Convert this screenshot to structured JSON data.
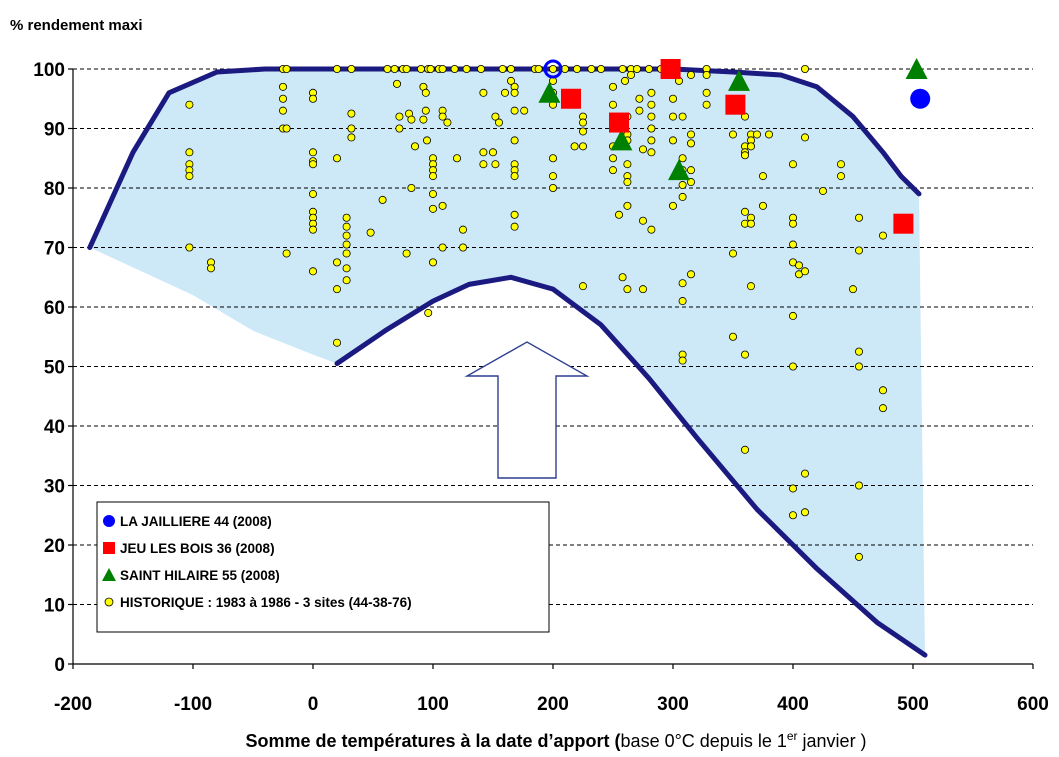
{
  "chart_data": {
    "type": "scatter",
    "title": "",
    "ylabel": "% rendement maxi",
    "xlabel": {
      "bold": "Somme de températures à la date d’apport (",
      "normal": "base 0°C depuis le 1",
      "sup": "er",
      "end": " janvier )"
    },
    "xlim": [
      -200,
      600
    ],
    "ylim": [
      0,
      100
    ],
    "x_ticks": [
      -200,
      -100,
      0,
      100,
      200,
      300,
      400,
      500,
      600
    ],
    "x_tick_labels": [
      "-200",
      "-100",
      "0",
      "100",
      "200",
      "300",
      "400",
      "500",
      "600"
    ],
    "y_ticks": [
      0,
      10,
      20,
      30,
      40,
      50,
      60,
      70,
      80,
      90,
      100
    ],
    "y_tick_labels": [
      "0",
      "10",
      "20",
      "30",
      "40",
      "50",
      "60",
      "70",
      "80",
      "90",
      "100"
    ],
    "grid": "horizontal dashed",
    "legend_position": "bottom-left",
    "envelope": {
      "color": "#cde9f8",
      "line_color": "#1a1a80",
      "upper": [
        [
          -186,
          70
        ],
        [
          -150,
          86
        ],
        [
          -120,
          96
        ],
        [
          -80,
          99.5
        ],
        [
          -40,
          100
        ],
        [
          0,
          100
        ],
        [
          300,
          100
        ],
        [
          350,
          99.5
        ],
        [
          390,
          99
        ],
        [
          420,
          97
        ],
        [
          450,
          92
        ],
        [
          475,
          86
        ],
        [
          490,
          82
        ],
        [
          505,
          79
        ]
      ],
      "lower": [
        [
          20,
          50.5
        ],
        [
          60,
          56
        ],
        [
          100,
          61
        ],
        [
          130,
          63.8
        ],
        [
          165,
          65
        ],
        [
          200,
          63
        ],
        [
          240,
          57
        ],
        [
          280,
          48
        ],
        [
          320,
          38
        ],
        [
          370,
          26
        ],
        [
          420,
          16
        ],
        [
          470,
          7
        ],
        [
          510,
          1.5
        ]
      ],
      "lower_left": [
        [
          -186,
          70
        ],
        [
          -100,
          62
        ],
        [
          -50,
          56
        ],
        [
          0,
          52
        ],
        [
          20,
          50.5
        ]
      ]
    },
    "series": [
      {
        "name": "LA JAILLIERE 44 (2008)",
        "marker": "circle",
        "color": "#0000ff",
        "points": [
          [
            200,
            100
          ],
          [
            506,
            95
          ]
        ]
      },
      {
        "name": "JEU LES BOIS 36 (2008)",
        "marker": "square",
        "color": "#ff0000",
        "points": [
          [
            215,
            95
          ],
          [
            255,
            91
          ],
          [
            298,
            100
          ],
          [
            352,
            94
          ],
          [
            492,
            74
          ]
        ]
      },
      {
        "name": "SAINT HILAIRE 55 (2008)",
        "marker": "triangle",
        "color": "#008000",
        "points": [
          [
            197,
            96
          ],
          [
            257,
            88
          ],
          [
            305,
            83
          ],
          [
            355,
            98
          ],
          [
            503,
            100
          ]
        ]
      },
      {
        "name": "HISTORIQUE : 1983 à 1986 - 3 sites (44-38-76)",
        "marker": "circle-small",
        "color": "#ffff00",
        "points": [
          [
            -103,
            94
          ],
          [
            -103,
            86
          ],
          [
            -103,
            84
          ],
          [
            -103,
            83
          ],
          [
            -103,
            82
          ],
          [
            -103,
            70
          ],
          [
            -85,
            67.5
          ],
          [
            -85,
            66.5
          ],
          [
            -25,
            100
          ],
          [
            -22,
            100
          ],
          [
            -25,
            97
          ],
          [
            -25,
            95
          ],
          [
            -25,
            93
          ],
          [
            -25,
            90
          ],
          [
            -22,
            90
          ],
          [
            -22,
            69
          ],
          [
            0,
            96
          ],
          [
            0,
            95
          ],
          [
            0,
            86
          ],
          [
            0,
            84.5
          ],
          [
            0,
            84
          ],
          [
            0,
            79
          ],
          [
            0,
            76
          ],
          [
            0,
            75
          ],
          [
            0,
            74
          ],
          [
            0,
            73
          ],
          [
            0,
            66
          ],
          [
            20,
            100
          ],
          [
            20,
            85
          ],
          [
            20,
            67.5
          ],
          [
            20,
            63
          ],
          [
            20,
            54
          ],
          [
            28,
            75
          ],
          [
            28,
            73.5
          ],
          [
            28,
            72
          ],
          [
            28,
            70.5
          ],
          [
            28,
            69
          ],
          [
            28,
            66.5
          ],
          [
            28,
            64.5
          ],
          [
            32,
            100
          ],
          [
            32,
            92.5
          ],
          [
            32,
            90
          ],
          [
            32,
            88.5
          ],
          [
            48,
            72.5
          ],
          [
            58,
            78
          ],
          [
            62,
            100
          ],
          [
            68,
            100
          ],
          [
            70,
            97.5
          ],
          [
            72,
            92
          ],
          [
            72,
            90
          ],
          [
            75,
            100
          ],
          [
            78,
            100
          ],
          [
            78,
            69
          ],
          [
            80,
            92.5
          ],
          [
            82,
            91.5
          ],
          [
            82,
            80
          ],
          [
            85,
            87
          ],
          [
            90,
            100
          ],
          [
            92,
            97
          ],
          [
            94,
            96
          ],
          [
            94,
            93
          ],
          [
            92,
            91.5
          ],
          [
            95,
            88
          ],
          [
            96,
            100
          ],
          [
            96,
            59
          ],
          [
            98,
            100
          ],
          [
            100,
            85
          ],
          [
            100,
            84
          ],
          [
            100,
            83
          ],
          [
            100,
            82
          ],
          [
            100,
            79
          ],
          [
            100,
            76.5
          ],
          [
            100,
            67.5
          ],
          [
            105,
            100
          ],
          [
            108,
            100
          ],
          [
            108,
            93
          ],
          [
            108,
            92
          ],
          [
            108,
            77
          ],
          [
            108,
            70
          ],
          [
            112,
            91
          ],
          [
            118,
            100
          ],
          [
            120,
            85
          ],
          [
            125,
            73
          ],
          [
            125,
            70
          ],
          [
            128,
            100
          ],
          [
            140,
            100
          ],
          [
            142,
            96
          ],
          [
            142,
            86
          ],
          [
            142,
            84
          ],
          [
            150,
            86
          ],
          [
            152,
            84
          ],
          [
            152,
            92
          ],
          [
            155,
            91
          ],
          [
            158,
            100
          ],
          [
            160,
            96
          ],
          [
            165,
            100
          ],
          [
            165,
            98
          ],
          [
            168,
            97
          ],
          [
            168,
            96
          ],
          [
            168,
            93
          ],
          [
            168,
            88
          ],
          [
            168,
            84
          ],
          [
            168,
            83
          ],
          [
            168,
            82
          ],
          [
            168,
            75.5
          ],
          [
            168,
            73.5
          ],
          [
            176,
            93
          ],
          [
            185,
            100
          ],
          [
            188,
            100
          ],
          [
            200,
            100
          ],
          [
            200,
            98
          ],
          [
            200,
            96
          ],
          [
            200,
            95
          ],
          [
            200,
            94
          ],
          [
            200,
            85
          ],
          [
            200,
            82
          ],
          [
            200,
            80
          ],
          [
            210,
            100
          ],
          [
            215,
            95
          ],
          [
            218,
            95
          ],
          [
            218,
            87
          ],
          [
            220,
            100
          ],
          [
            225,
            92
          ],
          [
            225,
            91
          ],
          [
            225,
            89.5
          ],
          [
            225,
            87
          ],
          [
            225,
            63.5
          ],
          [
            232,
            100
          ],
          [
            240,
            100
          ],
          [
            250,
            97
          ],
          [
            250,
            94
          ],
          [
            250,
            87
          ],
          [
            250,
            85
          ],
          [
            250,
            83
          ],
          [
            255,
            75.5
          ],
          [
            258,
            100
          ],
          [
            258,
            65
          ],
          [
            260,
            98
          ],
          [
            262,
            92
          ],
          [
            262,
            89
          ],
          [
            262,
            88
          ],
          [
            262,
            84
          ],
          [
            262,
            82
          ],
          [
            262,
            81
          ],
          [
            262,
            77
          ],
          [
            262,
            63
          ],
          [
            265,
            100
          ],
          [
            265,
            99
          ],
          [
            270,
            100
          ],
          [
            272,
            95
          ],
          [
            272,
            93
          ],
          [
            275,
            86.5
          ],
          [
            275,
            74.5
          ],
          [
            275,
            63
          ],
          [
            280,
            100
          ],
          [
            282,
            96
          ],
          [
            282,
            94
          ],
          [
            282,
            92
          ],
          [
            282,
            90
          ],
          [
            282,
            88
          ],
          [
            282,
            86
          ],
          [
            282,
            73
          ],
          [
            290,
            100
          ],
          [
            298,
            99
          ],
          [
            300,
            95
          ],
          [
            300,
            92
          ],
          [
            300,
            88
          ],
          [
            300,
            77
          ],
          [
            303,
            100
          ],
          [
            305,
            98
          ],
          [
            308,
            92
          ],
          [
            308,
            85
          ],
          [
            308,
            83
          ],
          [
            308,
            80.5
          ],
          [
            308,
            78.5
          ],
          [
            308,
            64
          ],
          [
            308,
            61
          ],
          [
            308,
            52
          ],
          [
            308,
            51
          ],
          [
            315,
            99
          ],
          [
            315,
            89
          ],
          [
            315,
            87.5
          ],
          [
            315,
            83
          ],
          [
            315,
            81
          ],
          [
            315,
            65.5
          ],
          [
            328,
            100
          ],
          [
            328,
            99
          ],
          [
            328,
            96
          ],
          [
            328,
            94
          ],
          [
            350,
            89
          ],
          [
            350,
            69
          ],
          [
            350,
            55
          ],
          [
            360,
            92
          ],
          [
            360,
            87
          ],
          [
            360,
            86
          ],
          [
            360,
            85.5
          ],
          [
            360,
            76
          ],
          [
            360,
            74
          ],
          [
            360,
            52
          ],
          [
            360,
            36
          ],
          [
            365,
            89
          ],
          [
            365,
            88
          ],
          [
            365,
            87
          ],
          [
            365,
            75
          ],
          [
            365,
            74
          ],
          [
            365,
            63.5
          ],
          [
            370,
            89
          ],
          [
            375,
            82
          ],
          [
            375,
            77
          ],
          [
            380,
            89
          ],
          [
            400,
            84
          ],
          [
            400,
            75
          ],
          [
            400,
            74
          ],
          [
            400,
            70.5
          ],
          [
            400,
            67.5
          ],
          [
            400,
            58.5
          ],
          [
            400,
            50
          ],
          [
            400,
            29.5
          ],
          [
            400,
            25
          ],
          [
            405,
            67
          ],
          [
            405,
            65.5
          ],
          [
            410,
            100
          ],
          [
            410,
            88.5
          ],
          [
            410,
            66
          ],
          [
            410,
            32
          ],
          [
            410,
            25.5
          ],
          [
            425,
            79.5
          ],
          [
            440,
            84
          ],
          [
            440,
            82
          ],
          [
            450,
            63
          ],
          [
            455,
            75
          ],
          [
            455,
            69.5
          ],
          [
            455,
            52.5
          ],
          [
            455,
            50
          ],
          [
            455,
            30
          ],
          [
            455,
            18
          ],
          [
            475,
            72
          ],
          [
            475,
            46
          ],
          [
            475,
            43
          ]
        ]
      }
    ]
  }
}
